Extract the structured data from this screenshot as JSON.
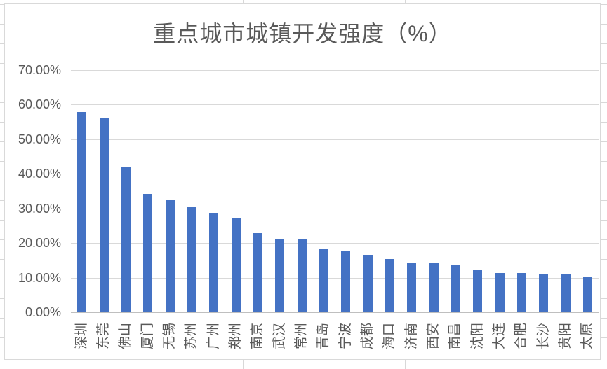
{
  "chart_data": {
    "type": "bar",
    "title": "重点城市城镇开发强度（%）",
    "categories": [
      "深圳",
      "东莞",
      "佛山",
      "厦门",
      "无锡",
      "苏州",
      "广州",
      "郑州",
      "南京",
      "武汉",
      "常州",
      "青岛",
      "宁波",
      "成都",
      "海口",
      "济南",
      "西安",
      "南昌",
      "沈阳",
      "大连",
      "合肥",
      "长沙",
      "贵阳",
      "太原"
    ],
    "values": [
      57.7,
      56.0,
      41.8,
      34.0,
      32.1,
      30.3,
      28.6,
      27.1,
      22.7,
      21.0,
      21.0,
      18.3,
      17.7,
      16.4,
      15.2,
      14.0,
      13.9,
      13.4,
      12.0,
      11.2,
      11.2,
      10.9,
      10.9,
      10.2
    ],
    "xlabel": "",
    "ylabel": "",
    "ylim": [
      0,
      70
    ],
    "y_tick_labels": [
      "70.00%",
      "60.00%",
      "50.00%",
      "40.00%",
      "30.00%",
      "20.00%",
      "10.00%",
      "0.00%"
    ],
    "grid": true,
    "legend_position": "none",
    "bar_color": "#4472C4",
    "gridline_color": "#D9D9D9",
    "axis_line_color": "#BFBFBF",
    "text_color": "#595959",
    "chart_background": "#FFFFFF"
  }
}
